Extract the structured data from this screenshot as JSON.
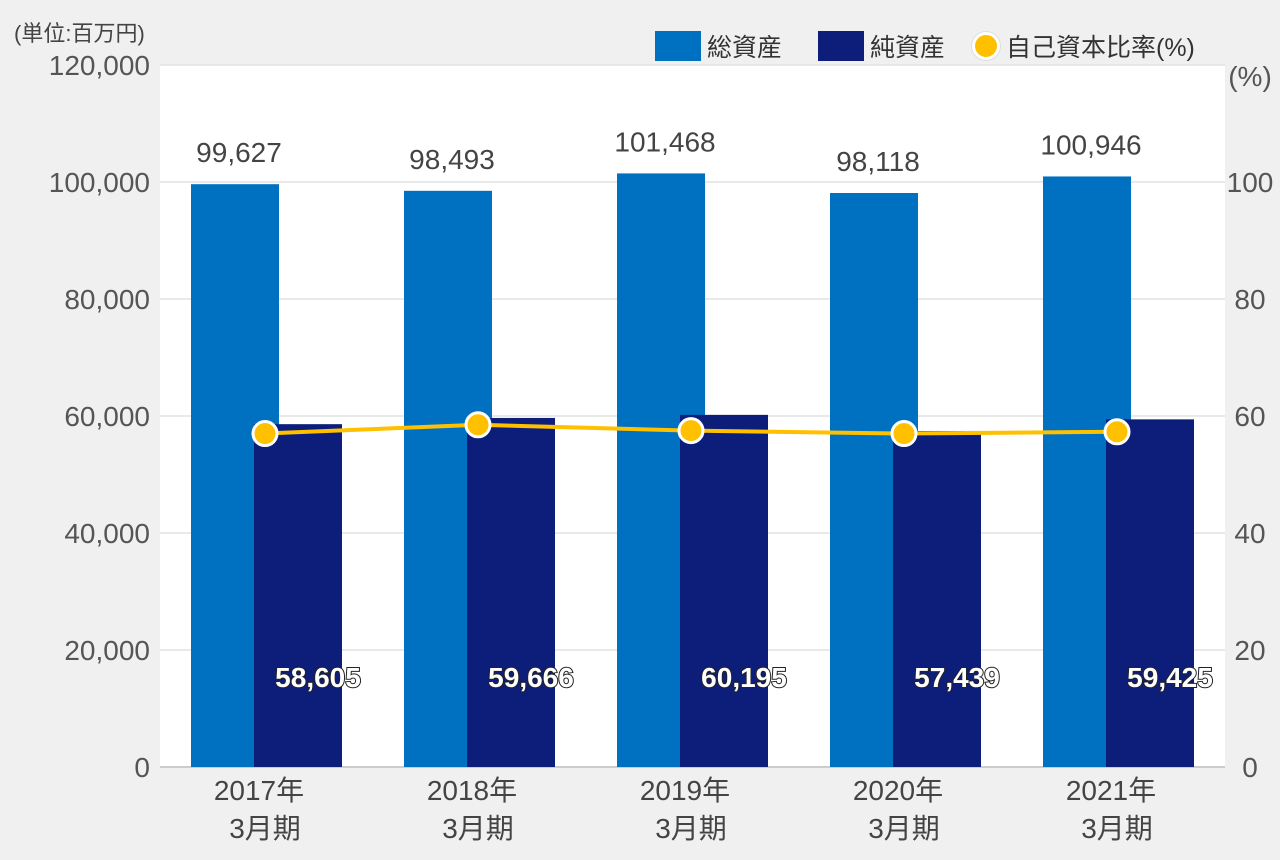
{
  "unit_label": "(単位:百万円)",
  "right_axis_unit": "(%)",
  "legend": [
    {
      "label": "総資産",
      "color": "#0070c0",
      "kind": "bar"
    },
    {
      "label": "純資産",
      "color": "#0d1e7a",
      "kind": "bar"
    },
    {
      "label": "自己資本比率(%)",
      "color": "#ffc000",
      "kind": "line"
    }
  ],
  "chart_data": {
    "type": "bar",
    "categories": [
      [
        "2017年",
        "3月期"
      ],
      [
        "2018年",
        "3月期"
      ],
      [
        "2019年",
        "3月期"
      ],
      [
        "2020年",
        "3月期"
      ],
      [
        "2021年",
        "3月期"
      ]
    ],
    "series": [
      {
        "name": "総資産",
        "color": "#0070c0",
        "values": [
          99627,
          98493,
          101468,
          98118,
          100946
        ],
        "labels": [
          "99,627",
          "98,493",
          "101,468",
          "98,118",
          "100,946"
        ]
      },
      {
        "name": "純資産",
        "color": "#0d1e7a",
        "values": [
          58605,
          59666,
          60195,
          57439,
          59425
        ],
        "labels": [
          "58,605",
          "59,666",
          "60,195",
          "57,439",
          "59,425"
        ]
      },
      {
        "name": "自己資本比率(%)",
        "type": "line",
        "axis": "right",
        "color": "#ffc000",
        "values": [
          57,
          58.5,
          57.5,
          57,
          57.3
        ]
      }
    ],
    "ylim": [
      0,
      120000
    ],
    "yticks": [
      "0",
      "20,000",
      "40,000",
      "60,000",
      "80,000",
      "100,000",
      "120,000"
    ],
    "y2lim": [
      0,
      120
    ],
    "y2ticks": [
      "0",
      "20",
      "40",
      "60",
      "80",
      "100"
    ],
    "grid": true,
    "legend_position": "top-right"
  }
}
